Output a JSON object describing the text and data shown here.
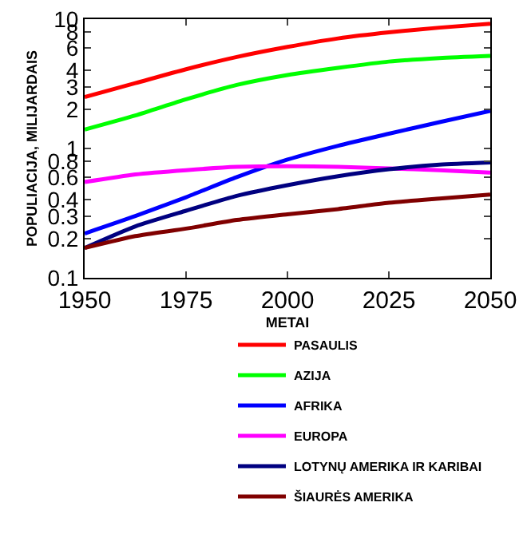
{
  "chart_data": {
    "type": "line",
    "xlabel": "METAI",
    "ylabel": "POPULIACIJA, MILIJARDAIS",
    "x": [
      1950,
      1962.5,
      1975,
      1987.5,
      2000,
      2012.5,
      2025,
      2037.5,
      2050
    ],
    "series": [
      {
        "name": "PASAULIS",
        "color": "#ff0000",
        "values": [
          2.5,
          3.2,
          4.1,
          5.1,
          6.1,
          7.1,
          7.9,
          8.6,
          9.2
        ]
      },
      {
        "name": "AZIJA",
        "color": "#00ff00",
        "values": [
          1.4,
          1.8,
          2.4,
          3.1,
          3.7,
          4.2,
          4.7,
          5.0,
          5.2
        ]
      },
      {
        "name": "AFRIKA",
        "color": "#0000ff",
        "values": [
          0.22,
          0.3,
          0.42,
          0.6,
          0.82,
          1.05,
          1.3,
          1.6,
          1.95
        ]
      },
      {
        "name": "EUROPA",
        "color": "#ff00ff",
        "values": [
          0.55,
          0.63,
          0.68,
          0.72,
          0.73,
          0.72,
          0.7,
          0.68,
          0.65
        ]
      },
      {
        "name": "LOTYNŲ AMERIKA IR KARIBAI",
        "color": "#000080",
        "values": [
          0.17,
          0.25,
          0.33,
          0.43,
          0.52,
          0.61,
          0.69,
          0.75,
          0.78
        ]
      },
      {
        "name": "ŠIAURĖS AMERIKA",
        "color": "#800000",
        "values": [
          0.17,
          0.21,
          0.24,
          0.28,
          0.31,
          0.34,
          0.38,
          0.41,
          0.44
        ]
      }
    ],
    "xlim": [
      1950,
      2050
    ],
    "xticks": [
      1950,
      1975,
      2000,
      2025,
      2050
    ],
    "ylim": [
      0.1,
      10
    ],
    "yticks": [
      0.1,
      0.2,
      0.3,
      0.4,
      0.6,
      0.8,
      1,
      2,
      3,
      4,
      6,
      8,
      10
    ],
    "log": "y",
    "grid": false,
    "legend": "bottom right",
    "marker": "none",
    "line_style": "solid"
  }
}
